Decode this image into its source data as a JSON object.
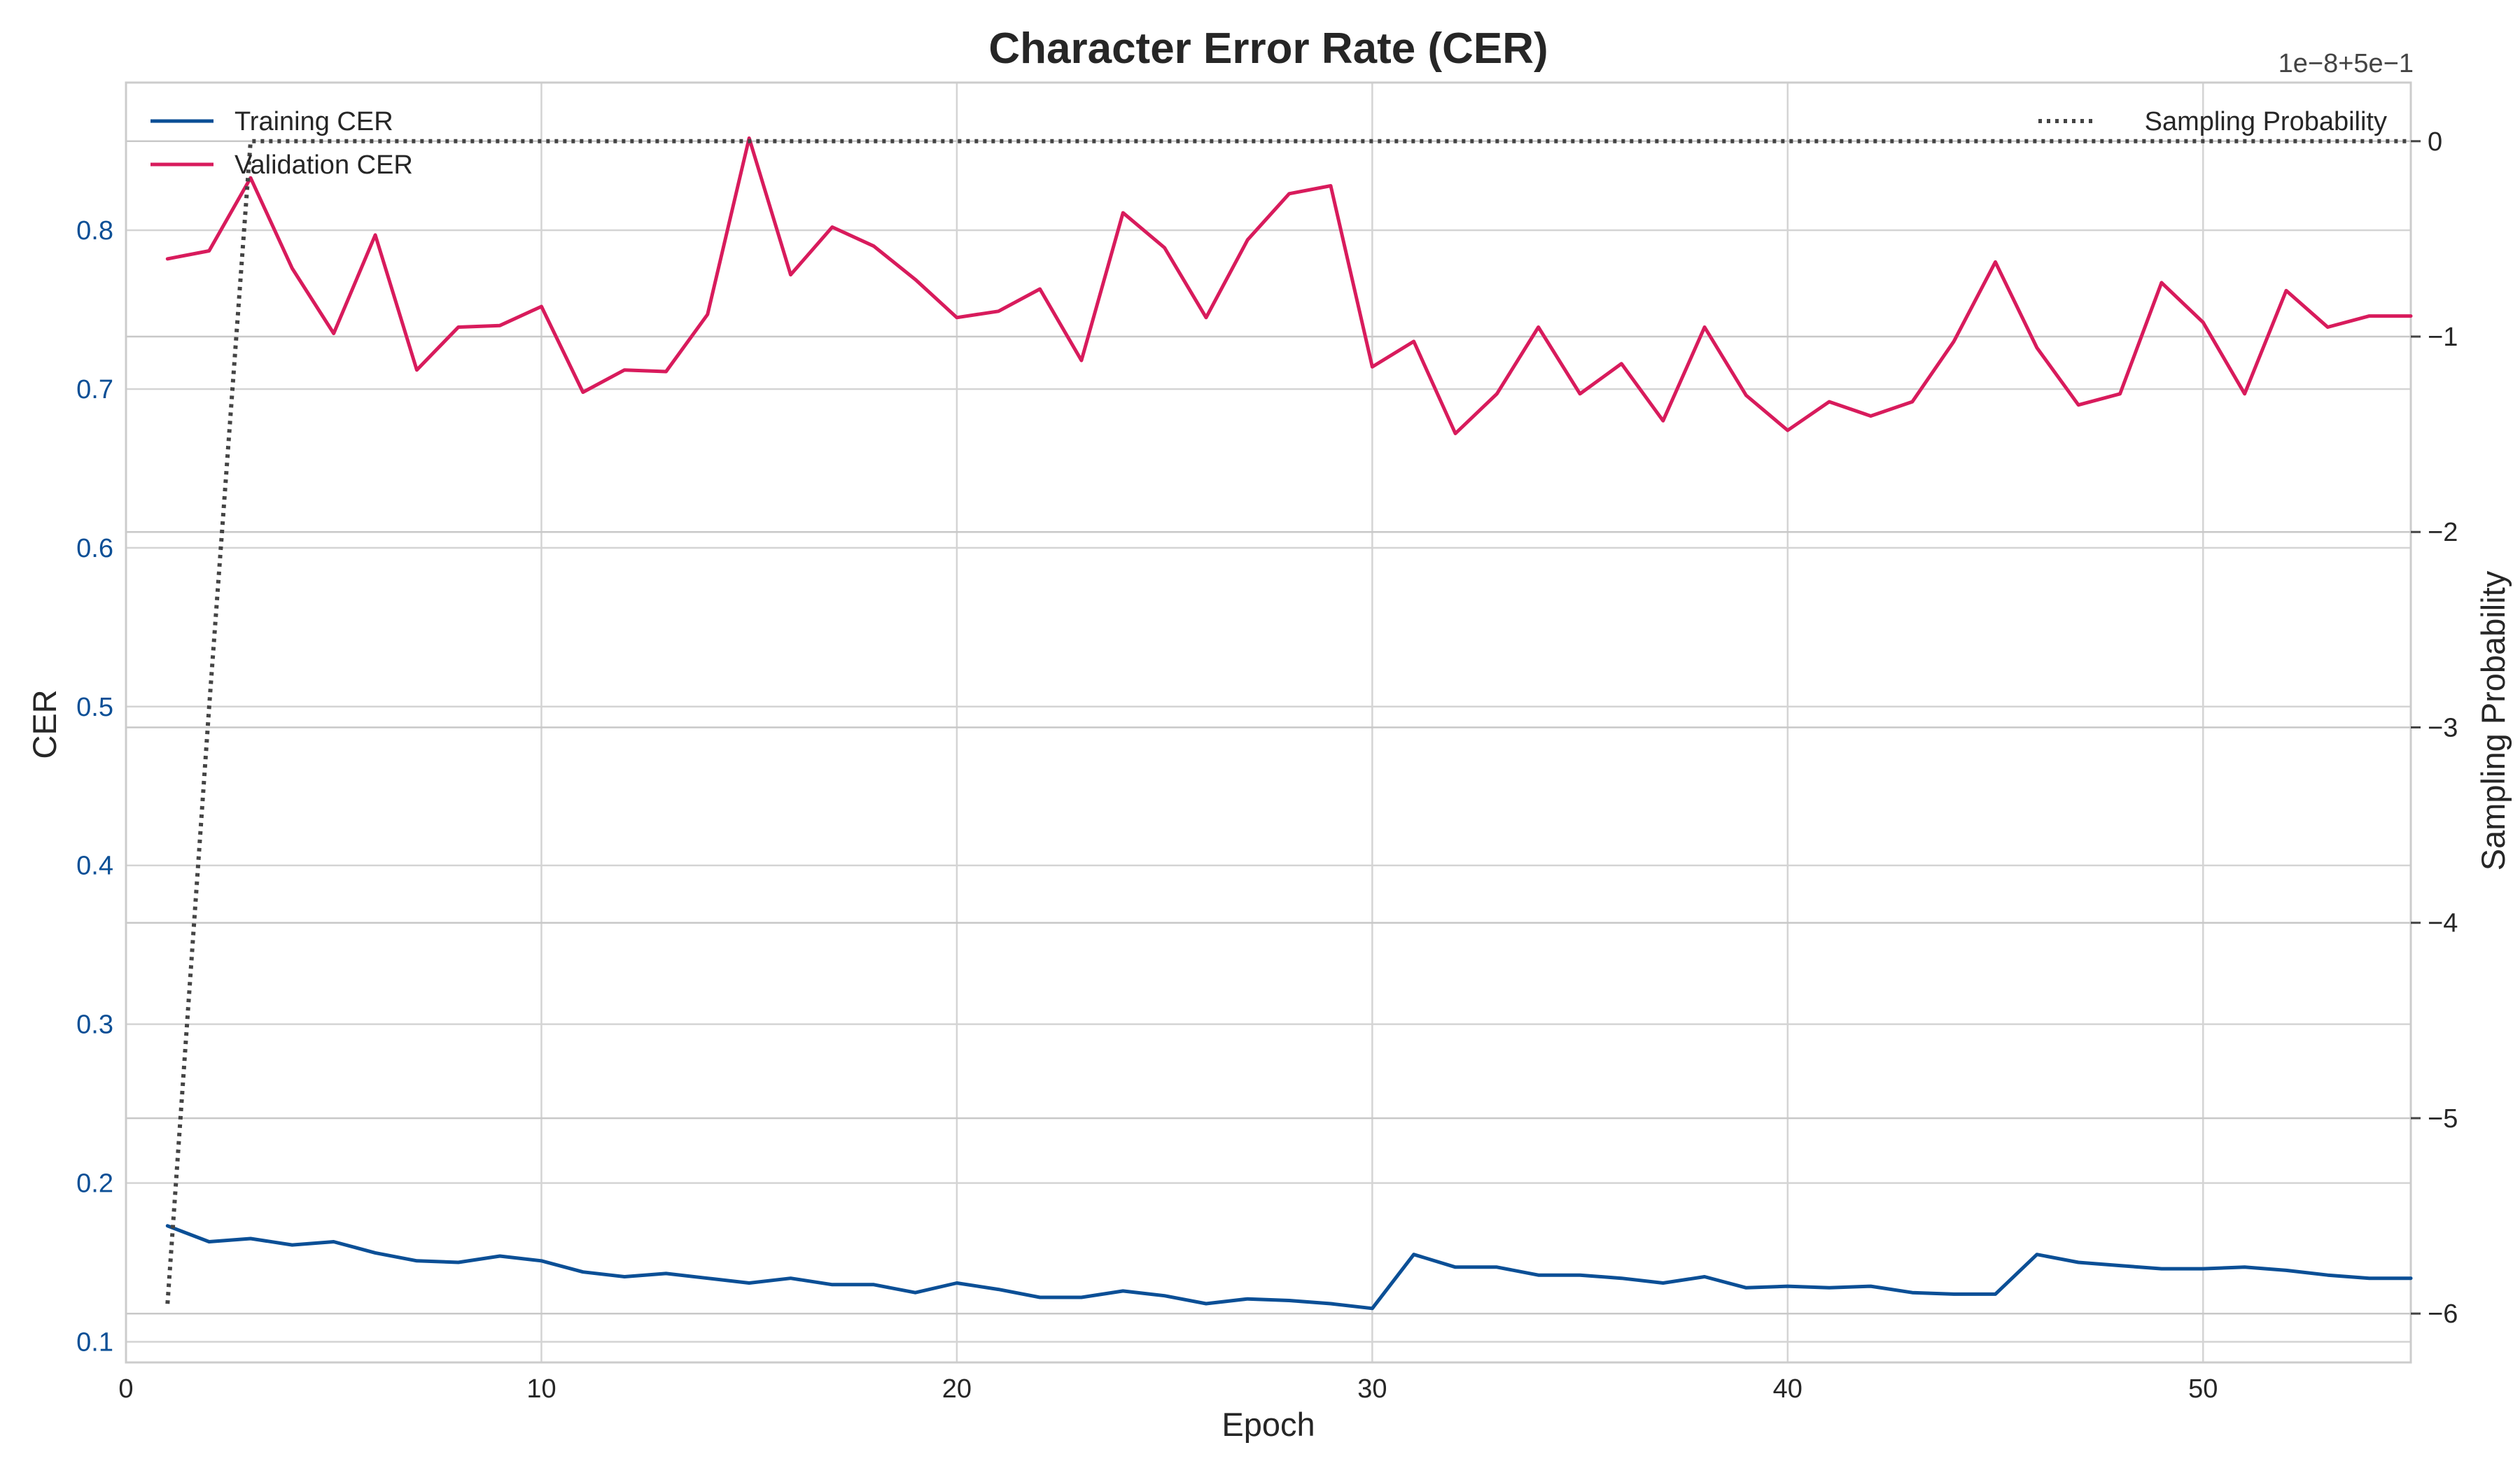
{
  "chart_data": {
    "type": "line",
    "title": "Character Error Rate (CER)",
    "xlabel": "Epoch",
    "ylabel": "CER",
    "y2label": "Sampling Probability",
    "y2_offset_label": "1e−8+5e−1",
    "xlim": [
      0,
      55
    ],
    "ylim": [
      0.087,
      0.893
    ],
    "y2lim": [
      -6.25,
      0.3
    ],
    "x_ticks": [
      0,
      10,
      20,
      30,
      40,
      50
    ],
    "y_ticks": [
      0.1,
      0.2,
      0.3,
      0.4,
      0.5,
      0.6,
      0.7,
      0.8
    ],
    "y2_ticks": [
      0,
      -1,
      -2,
      -3,
      -4,
      -5,
      -6
    ],
    "y2_tick_labels": [
      "0",
      "−1",
      "−2",
      "−3",
      "−4",
      "−5",
      "−6"
    ],
    "grid": true,
    "legend_left": "top-left",
    "legend_right": "top-right",
    "x": [
      1,
      2,
      3,
      4,
      5,
      6,
      7,
      8,
      9,
      10,
      11,
      12,
      13,
      14,
      15,
      16,
      17,
      18,
      19,
      20,
      21,
      22,
      23,
      24,
      25,
      26,
      27,
      28,
      29,
      30,
      31,
      32,
      33,
      34,
      35,
      36,
      37,
      38,
      39,
      40,
      41,
      42,
      43,
      44,
      45,
      46,
      47,
      48,
      49,
      50,
      51,
      52,
      53,
      54,
      55
    ],
    "series": [
      {
        "name": "Training CER",
        "axis": "left",
        "color": "#0b4f96",
        "style": "solid",
        "values": [
          0.173,
          0.163,
          0.165,
          0.161,
          0.163,
          0.156,
          0.151,
          0.15,
          0.154,
          0.151,
          0.144,
          0.141,
          0.143,
          0.14,
          0.137,
          0.14,
          0.136,
          0.136,
          0.131,
          0.137,
          0.133,
          0.128,
          0.128,
          0.132,
          0.129,
          0.124,
          0.127,
          0.126,
          0.124,
          0.121,
          0.155,
          0.147,
          0.147,
          0.142,
          0.142,
          0.14,
          0.137,
          0.141,
          0.134,
          0.135,
          0.134,
          0.135,
          0.131,
          0.13,
          0.13,
          0.155,
          0.15,
          0.148,
          0.146,
          0.146,
          0.147,
          0.145,
          0.142,
          0.14,
          0.14
        ]
      },
      {
        "name": "Validation CER",
        "axis": "left",
        "color": "#d81b5c",
        "style": "solid",
        "values": [
          0.782,
          0.787,
          0.833,
          0.776,
          0.735,
          0.797,
          0.712,
          0.739,
          0.74,
          0.752,
          0.698,
          0.712,
          0.711,
          0.747,
          0.858,
          0.772,
          0.802,
          0.79,
          0.769,
          0.745,
          0.749,
          0.763,
          0.718,
          0.811,
          0.789,
          0.745,
          0.794,
          0.823,
          0.828,
          0.714,
          0.73,
          0.672,
          0.697,
          0.739,
          0.697,
          0.716,
          0.68,
          0.739,
          0.696,
          0.674,
          0.692,
          0.683,
          0.692,
          0.73,
          0.78,
          0.726,
          0.69,
          0.697,
          0.767,
          0.742,
          0.697,
          0.762,
          0.739,
          0.746,
          0.746
        ]
      },
      {
        "name": "Sampling Probability",
        "axis": "right",
        "color": "#444444",
        "style": "dotted",
        "values": [
          -5.95,
          -2.9,
          0,
          0,
          0,
          0,
          0,
          0,
          0,
          0,
          0,
          0,
          0,
          0,
          0,
          0,
          0,
          0,
          0,
          0,
          0,
          0,
          0,
          0,
          0,
          0,
          0,
          0,
          0,
          0,
          0,
          0,
          0,
          0,
          0,
          0,
          0,
          0,
          0,
          0,
          0,
          0,
          0,
          0,
          0,
          0,
          0,
          0,
          0,
          0,
          0,
          0,
          0,
          0,
          0
        ]
      }
    ]
  }
}
